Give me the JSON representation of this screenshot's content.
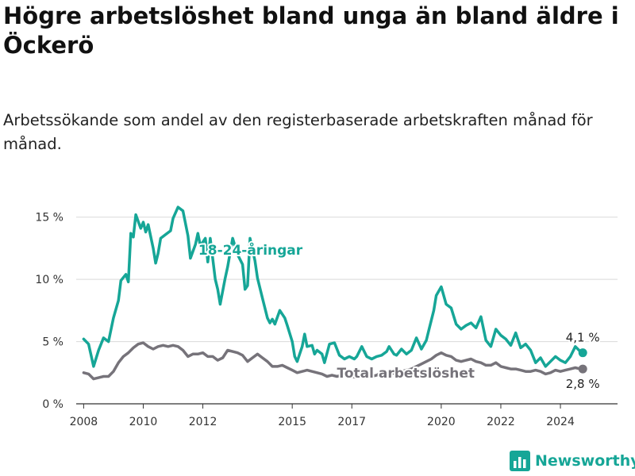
{
  "header": {
    "title": "Högre arbetslöshet bland unga än bland äldre i Öckerö",
    "subtitle": "Arbetssökande som andel av den registerbaserade arbetskraften månad för månad."
  },
  "brand": {
    "name": "Newsworthy",
    "icon": "newsworthy-bar-chart-icon"
  },
  "colors": {
    "youth": "#16a697",
    "total": "#76737a",
    "grid": "#d9d9d9",
    "axis": "#333333"
  },
  "chart_data": {
    "type": "line",
    "x_ticks": [
      "2008",
      "2010",
      "2012",
      "2015",
      "2017",
      "2020",
      "2022",
      "2024"
    ],
    "y_ticks": [
      "0 %",
      "5 %",
      "10 %",
      "15 %"
    ],
    "ylim": [
      0,
      16
    ],
    "xlim": [
      "2007-10",
      "2025-12"
    ],
    "grid": "horizontal",
    "series": [
      {
        "name": "18-24-åringar",
        "end_label": "4,1 %",
        "values": [
          [
            "2008-01",
            5.2
          ],
          [
            "2008-03",
            4.8
          ],
          [
            "2008-05",
            3.0
          ],
          [
            "2008-07",
            4.3
          ],
          [
            "2008-09",
            5.3
          ],
          [
            "2008-11",
            5.0
          ],
          [
            "2009-01",
            6.9
          ],
          [
            "2009-03",
            8.3
          ],
          [
            "2009-04",
            9.9
          ],
          [
            "2009-06",
            10.4
          ],
          [
            "2009-07",
            9.8
          ],
          [
            "2009-08",
            13.7
          ],
          [
            "2009-09",
            13.4
          ],
          [
            "2009-10",
            15.2
          ],
          [
            "2009-12",
            14.1
          ],
          [
            "2010-01",
            14.6
          ],
          [
            "2010-02",
            13.8
          ],
          [
            "2010-03",
            14.4
          ],
          [
            "2010-05",
            12.5
          ],
          [
            "2010-06",
            11.3
          ],
          [
            "2010-07",
            12.1
          ],
          [
            "2010-08",
            13.3
          ],
          [
            "2010-10",
            13.6
          ],
          [
            "2010-12",
            13.9
          ],
          [
            "2011-01",
            14.9
          ],
          [
            "2011-03",
            15.8
          ],
          [
            "2011-05",
            15.5
          ],
          [
            "2011-07",
            13.5
          ],
          [
            "2011-08",
            11.7
          ],
          [
            "2011-10",
            12.8
          ],
          [
            "2011-11",
            13.7
          ],
          [
            "2011-12",
            12.7
          ],
          [
            "2012-02",
            13.3
          ],
          [
            "2012-03",
            11.4
          ],
          [
            "2012-04",
            13.3
          ],
          [
            "2012-06",
            10.0
          ],
          [
            "2012-07",
            9.2
          ],
          [
            "2012-08",
            8.0
          ],
          [
            "2012-10",
            10.1
          ],
          [
            "2012-11",
            11.0
          ],
          [
            "2013-01",
            13.3
          ],
          [
            "2013-03",
            12.0
          ],
          [
            "2013-05",
            11.2
          ],
          [
            "2013-06",
            9.2
          ],
          [
            "2013-07",
            9.5
          ],
          [
            "2013-08",
            13.3
          ],
          [
            "2013-10",
            11.5
          ],
          [
            "2013-11",
            10.1
          ],
          [
            "2014-01",
            8.5
          ],
          [
            "2014-03",
            6.9
          ],
          [
            "2014-04",
            6.5
          ],
          [
            "2014-05",
            6.8
          ],
          [
            "2014-06",
            6.4
          ],
          [
            "2014-08",
            7.5
          ],
          [
            "2014-10",
            6.9
          ],
          [
            "2014-11",
            6.3
          ],
          [
            "2015-01",
            5.0
          ],
          [
            "2015-02",
            3.8
          ],
          [
            "2015-03",
            3.4
          ],
          [
            "2015-05",
            4.6
          ],
          [
            "2015-06",
            5.6
          ],
          [
            "2015-07",
            4.6
          ],
          [
            "2015-09",
            4.7
          ],
          [
            "2015-10",
            4.0
          ],
          [
            "2015-11",
            4.3
          ],
          [
            "2016-01",
            4.0
          ],
          [
            "2016-02",
            3.3
          ],
          [
            "2016-04",
            4.8
          ],
          [
            "2016-06",
            4.9
          ],
          [
            "2016-08",
            3.9
          ],
          [
            "2016-10",
            3.6
          ],
          [
            "2016-12",
            3.8
          ],
          [
            "2017-02",
            3.6
          ],
          [
            "2017-03",
            3.8
          ],
          [
            "2017-05",
            4.6
          ],
          [
            "2017-07",
            3.8
          ],
          [
            "2017-09",
            3.6
          ],
          [
            "2017-11",
            3.8
          ],
          [
            "2018-01",
            3.9
          ],
          [
            "2018-03",
            4.2
          ],
          [
            "2018-04",
            4.6
          ],
          [
            "2018-06",
            4.0
          ],
          [
            "2018-07",
            3.9
          ],
          [
            "2018-09",
            4.4
          ],
          [
            "2018-11",
            4.0
          ],
          [
            "2019-01",
            4.3
          ],
          [
            "2019-03",
            5.3
          ],
          [
            "2019-05",
            4.4
          ],
          [
            "2019-07",
            5.1
          ],
          [
            "2019-08",
            5.9
          ],
          [
            "2019-10",
            7.5
          ],
          [
            "2019-11",
            8.7
          ],
          [
            "2020-01",
            9.4
          ],
          [
            "2020-03",
            8.0
          ],
          [
            "2020-05",
            7.7
          ],
          [
            "2020-07",
            6.4
          ],
          [
            "2020-09",
            6.0
          ],
          [
            "2020-11",
            6.3
          ],
          [
            "2021-01",
            6.5
          ],
          [
            "2021-03",
            6.1
          ],
          [
            "2021-05",
            7.0
          ],
          [
            "2021-07",
            5.1
          ],
          [
            "2021-09",
            4.6
          ],
          [
            "2021-11",
            6.0
          ],
          [
            "2022-01",
            5.5
          ],
          [
            "2022-03",
            5.2
          ],
          [
            "2022-05",
            4.7
          ],
          [
            "2022-07",
            5.7
          ],
          [
            "2022-09",
            4.5
          ],
          [
            "2022-11",
            4.8
          ],
          [
            "2023-01",
            4.3
          ],
          [
            "2023-03",
            3.3
          ],
          [
            "2023-05",
            3.7
          ],
          [
            "2023-07",
            3.0
          ],
          [
            "2023-09",
            3.4
          ],
          [
            "2023-11",
            3.8
          ],
          [
            "2024-01",
            3.5
          ],
          [
            "2024-03",
            3.3
          ],
          [
            "2024-05",
            3.8
          ],
          [
            "2024-07",
            4.6
          ],
          [
            "2024-09",
            4.2
          ],
          [
            "2024-10",
            4.1
          ]
        ]
      },
      {
        "name": "Total arbetslöshet",
        "end_label": "2,8 %",
        "values": [
          [
            "2008-01",
            2.5
          ],
          [
            "2008-03",
            2.4
          ],
          [
            "2008-05",
            2.0
          ],
          [
            "2008-07",
            2.1
          ],
          [
            "2008-09",
            2.2
          ],
          [
            "2008-11",
            2.2
          ],
          [
            "2009-01",
            2.6
          ],
          [
            "2009-03",
            3.3
          ],
          [
            "2009-05",
            3.8
          ],
          [
            "2009-07",
            4.1
          ],
          [
            "2009-09",
            4.5
          ],
          [
            "2009-11",
            4.8
          ],
          [
            "2010-01",
            4.9
          ],
          [
            "2010-03",
            4.6
          ],
          [
            "2010-05",
            4.4
          ],
          [
            "2010-07",
            4.6
          ],
          [
            "2010-09",
            4.7
          ],
          [
            "2010-11",
            4.6
          ],
          [
            "2011-01",
            4.7
          ],
          [
            "2011-03",
            4.6
          ],
          [
            "2011-05",
            4.3
          ],
          [
            "2011-07",
            3.8
          ],
          [
            "2011-09",
            4.0
          ],
          [
            "2011-11",
            4.0
          ],
          [
            "2012-01",
            4.1
          ],
          [
            "2012-03",
            3.8
          ],
          [
            "2012-05",
            3.8
          ],
          [
            "2012-07",
            3.5
          ],
          [
            "2012-09",
            3.7
          ],
          [
            "2012-11",
            4.3
          ],
          [
            "2013-01",
            4.2
          ],
          [
            "2013-03",
            4.1
          ],
          [
            "2013-05",
            3.9
          ],
          [
            "2013-07",
            3.4
          ],
          [
            "2013-09",
            3.7
          ],
          [
            "2013-11",
            4.0
          ],
          [
            "2014-01",
            3.7
          ],
          [
            "2014-03",
            3.4
          ],
          [
            "2014-05",
            3.0
          ],
          [
            "2014-07",
            3.0
          ],
          [
            "2014-09",
            3.1
          ],
          [
            "2014-11",
            2.9
          ],
          [
            "2015-01",
            2.7
          ],
          [
            "2015-03",
            2.5
          ],
          [
            "2015-05",
            2.6
          ],
          [
            "2015-07",
            2.7
          ],
          [
            "2015-09",
            2.6
          ],
          [
            "2015-11",
            2.5
          ],
          [
            "2016-01",
            2.4
          ],
          [
            "2016-03",
            2.2
          ],
          [
            "2016-05",
            2.3
          ],
          [
            "2016-07",
            2.2
          ],
          [
            "2016-09",
            2.3
          ],
          [
            "2016-11",
            2.3
          ],
          [
            "2017-01",
            2.2
          ],
          [
            "2017-03",
            2.1
          ],
          [
            "2017-05",
            2.3
          ],
          [
            "2017-07",
            2.3
          ],
          [
            "2017-09",
            2.2
          ],
          [
            "2017-11",
            2.3
          ],
          [
            "2018-01",
            2.5
          ],
          [
            "2018-03",
            2.6
          ],
          [
            "2018-05",
            2.5
          ],
          [
            "2018-07",
            2.4
          ],
          [
            "2018-09",
            2.6
          ],
          [
            "2018-11",
            2.7
          ],
          [
            "2019-01",
            2.8
          ],
          [
            "2019-03",
            3.0
          ],
          [
            "2019-05",
            3.2
          ],
          [
            "2019-07",
            3.4
          ],
          [
            "2019-09",
            3.6
          ],
          [
            "2019-11",
            3.9
          ],
          [
            "2020-01",
            4.1
          ],
          [
            "2020-03",
            3.9
          ],
          [
            "2020-05",
            3.8
          ],
          [
            "2020-07",
            3.5
          ],
          [
            "2020-09",
            3.4
          ],
          [
            "2020-11",
            3.5
          ],
          [
            "2021-01",
            3.6
          ],
          [
            "2021-03",
            3.4
          ],
          [
            "2021-05",
            3.3
          ],
          [
            "2021-07",
            3.1
          ],
          [
            "2021-09",
            3.1
          ],
          [
            "2021-11",
            3.3
          ],
          [
            "2022-01",
            3.0
          ],
          [
            "2022-03",
            2.9
          ],
          [
            "2022-05",
            2.8
          ],
          [
            "2022-07",
            2.8
          ],
          [
            "2022-09",
            2.7
          ],
          [
            "2022-11",
            2.6
          ],
          [
            "2023-01",
            2.6
          ],
          [
            "2023-03",
            2.7
          ],
          [
            "2023-05",
            2.6
          ],
          [
            "2023-07",
            2.4
          ],
          [
            "2023-09",
            2.5
          ],
          [
            "2023-11",
            2.7
          ],
          [
            "2024-01",
            2.6
          ],
          [
            "2024-03",
            2.7
          ],
          [
            "2024-05",
            2.8
          ],
          [
            "2024-07",
            2.9
          ],
          [
            "2024-09",
            2.8
          ],
          [
            "2024-10",
            2.8
          ]
        ]
      }
    ]
  }
}
